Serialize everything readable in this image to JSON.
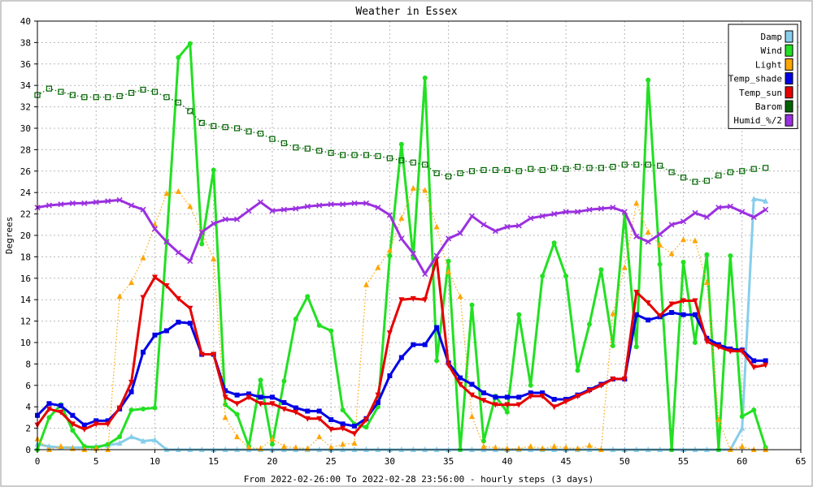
{
  "chart_data": {
    "type": "line",
    "title": "Weather in Essex",
    "xlabel": "From 2022-02-26:00 To 2022-02-28 23:56:00 - hourly steps (3 days)",
    "ylabel": "Degrees",
    "xlim": [
      0,
      65
    ],
    "ylim": [
      0,
      40
    ],
    "x_ticks": [
      0,
      5,
      10,
      15,
      20,
      25,
      30,
      35,
      40,
      45,
      50,
      55,
      60,
      65
    ],
    "y_ticks": [
      0,
      2,
      4,
      6,
      8,
      10,
      12,
      14,
      16,
      18,
      20,
      22,
      24,
      26,
      28,
      30,
      32,
      34,
      36,
      38,
      40
    ],
    "grid": true,
    "legend_position": "top-right",
    "series": [
      {
        "name": "Damp",
        "color": "#87ceeb",
        "marker": "triangle-up",
        "dashed": false,
        "values": [
          0.5,
          0.3,
          0.2,
          0.2,
          0.2,
          0.3,
          0.4,
          0.6,
          1.2,
          0.8,
          0.9,
          0,
          0,
          0,
          0,
          0,
          0,
          0,
          0,
          0,
          0,
          0,
          0,
          0,
          0,
          0,
          0,
          0,
          0,
          0,
          0,
          0,
          0,
          0,
          0,
          0,
          0,
          0,
          0,
          0,
          0,
          0,
          0,
          0,
          0,
          0,
          0,
          0,
          0,
          0,
          0,
          0,
          0,
          0,
          0,
          0,
          0,
          0,
          0,
          0,
          2,
          23.4,
          23.2
        ]
      },
      {
        "name": "Wind",
        "color": "#22e022",
        "marker": "circle",
        "dashed": false,
        "values": [
          0,
          3,
          4.2,
          1.8,
          0.3,
          0.2,
          0.5,
          1.2,
          3.7,
          3.8,
          3.9,
          19.4,
          36.6,
          37.9,
          19.2,
          26.1,
          4.2,
          3.3,
          0.3,
          6.5,
          0.5,
          6.4,
          12.2,
          14.3,
          11.6,
          11.1,
          3.7,
          2.4,
          2.1,
          4,
          18.1,
          28.5,
          17.9,
          34.7,
          8.3,
          17.6,
          0,
          13.5,
          0.8,
          5,
          3.5,
          12.6,
          6,
          16.2,
          19.3,
          16.2,
          7.4,
          11.7,
          16.8,
          9.7,
          22,
          9.6,
          34.5,
          17.3,
          0,
          17.5,
          10,
          18.2,
          0,
          18.1,
          3.1,
          3.7,
          0.2
        ]
      },
      {
        "name": "Light",
        "color": "#ffa500",
        "marker": "triangle-up",
        "dashed": true,
        "values": [
          1,
          0,
          0.3,
          0.1,
          0,
          0.1,
          0,
          14.3,
          15.6,
          17.9,
          21,
          23.9,
          24.1,
          22.7,
          20.3,
          17.8,
          3,
          1.2,
          0.2,
          0.1,
          1,
          0.3,
          0.2,
          0.1,
          1.2,
          0.2,
          0.5,
          0.6,
          15.4,
          17,
          18.6,
          21.6,
          24.4,
          24.2,
          20.8,
          16.6,
          14.3,
          3.1,
          0.3,
          0.2,
          0.1,
          0.1,
          0.3,
          0.1,
          0.3,
          0.2,
          0.1,
          0.4,
          0,
          12.7,
          17,
          23,
          20.3,
          19.1,
          18.3,
          19.6,
          19.5,
          15.6,
          2.8,
          0,
          0.3,
          0,
          0
        ]
      },
      {
        "name": "Temp_shade",
        "color": "#0000e6",
        "marker": "square",
        "dashed": false,
        "values": [
          3.2,
          4.3,
          4.1,
          3.2,
          2.3,
          2.7,
          2.7,
          3.8,
          5.4,
          9.1,
          10.7,
          11.1,
          11.9,
          11.8,
          8.9,
          8.9,
          5.5,
          5.1,
          5.2,
          4.9,
          4.9,
          4.4,
          3.9,
          3.6,
          3.6,
          2.8,
          2.4,
          2.2,
          2.9,
          4.4,
          6.9,
          8.6,
          9.8,
          9.8,
          11.4,
          8.1,
          6.7,
          6.1,
          5.3,
          4.9,
          4.9,
          4.9,
          5.3,
          5.3,
          4.7,
          4.7,
          5.1,
          5.6,
          6.1,
          6.6,
          6.6,
          12.6,
          12.1,
          12.4,
          12.8,
          12.6,
          12.6,
          10.4,
          9.8,
          9.4,
          9.3,
          8.3,
          8.3
        ]
      },
      {
        "name": "Temp_sun",
        "color": "#e60000",
        "marker": "triangle-down",
        "dashed": false,
        "values": [
          2.3,
          3.8,
          3.5,
          2.4,
          1.9,
          2.4,
          2.4,
          3.9,
          6.3,
          14.2,
          16.1,
          15.3,
          14.1,
          13.2,
          8.9,
          8.9,
          4.9,
          4.3,
          4.9,
          4.3,
          4.3,
          3.8,
          3.5,
          2.9,
          2.9,
          1.9,
          2,
          1.5,
          2.8,
          5.1,
          10.9,
          14,
          14.1,
          14,
          17.8,
          7.9,
          6.1,
          5.1,
          4.6,
          4.2,
          4.2,
          4.2,
          5,
          5,
          4,
          4.5,
          5,
          5.5,
          6,
          6.6,
          6.6,
          14.7,
          13.7,
          12.5,
          13.6,
          13.9,
          13.9,
          10.1,
          9.6,
          9.2,
          9.2,
          7.7,
          7.9
        ]
      },
      {
        "name": "Barom",
        "color": "#006400",
        "marker": "square-open",
        "dashed": true,
        "values": [
          33.1,
          33.7,
          33.4,
          33.1,
          32.9,
          32.9,
          32.9,
          33,
          33.3,
          33.6,
          33.4,
          32.9,
          32.4,
          31.6,
          30.5,
          30.2,
          30.1,
          30,
          29.7,
          29.5,
          29,
          28.6,
          28.2,
          28.1,
          27.9,
          27.7,
          27.5,
          27.5,
          27.5,
          27.4,
          27.2,
          27,
          26.8,
          26.6,
          25.8,
          25.5,
          25.8,
          26,
          26.1,
          26.1,
          26.1,
          26,
          26.2,
          26.1,
          26.3,
          26.2,
          26.4,
          26.3,
          26.3,
          26.4,
          26.6,
          26.6,
          26.6,
          26.5,
          25.9,
          25.4,
          25,
          25.1,
          25.6,
          25.9,
          26,
          26.2,
          26.3
        ]
      },
      {
        "name": "Humid_%/2",
        "color": "#9b30e0",
        "marker": "cross",
        "dashed": false,
        "values": [
          22.6,
          22.8,
          22.9,
          23,
          23,
          23.1,
          23.2,
          23.3,
          22.8,
          22.4,
          20.6,
          19.4,
          18.4,
          17.6,
          20.3,
          21.1,
          21.5,
          21.5,
          22.3,
          23.1,
          22.3,
          22.4,
          22.5,
          22.7,
          22.8,
          22.9,
          22.9,
          23,
          23,
          22.6,
          21.9,
          19.7,
          18.3,
          16.4,
          18.1,
          19.7,
          20.2,
          21.8,
          21,
          20.4,
          20.8,
          20.9,
          21.6,
          21.8,
          22,
          22.2,
          22.2,
          22.4,
          22.5,
          22.6,
          22.2,
          19.9,
          19.4,
          20.1,
          21,
          21.3,
          22.1,
          21.7,
          22.6,
          22.7,
          22.2,
          21.7,
          22.4
        ]
      }
    ]
  }
}
